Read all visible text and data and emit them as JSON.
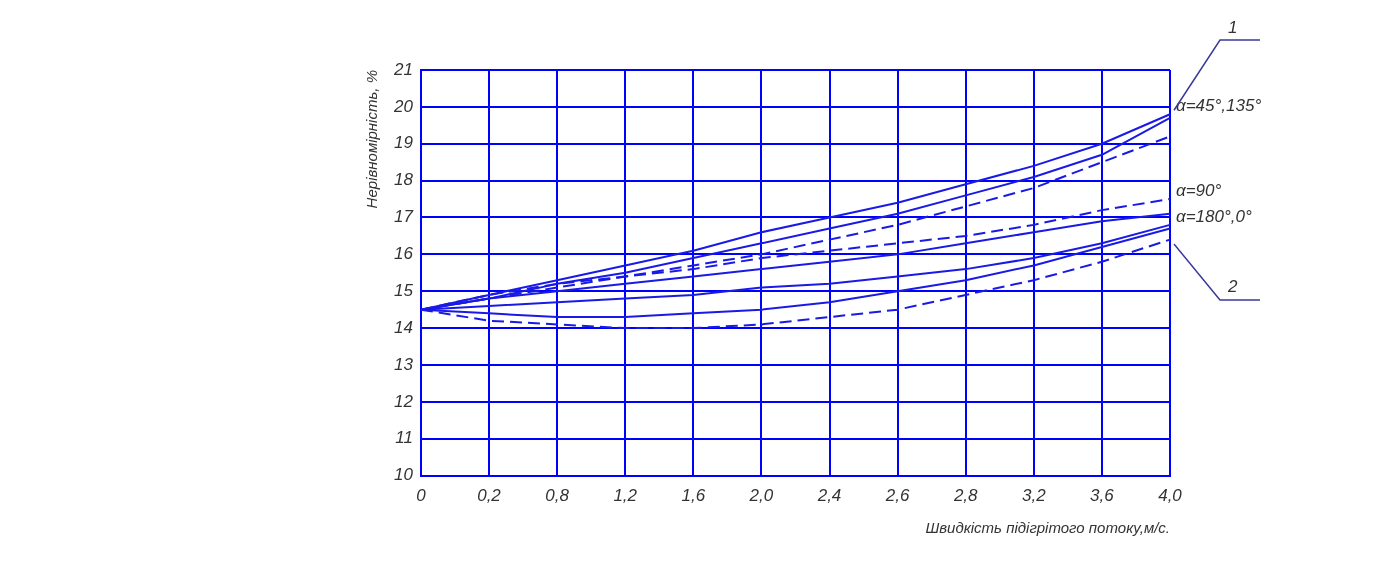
{
  "chart_data": {
    "type": "line",
    "xlabel": "Швидкість підігрітого потоку,м/с.",
    "ylabel": "Нерівномірність, %",
    "categories": [
      "0",
      "0,2",
      "0,8",
      "1,2",
      "1,6",
      "2,0",
      "2,4",
      "2,6",
      "2,8",
      "3,2",
      "3,6",
      "4,0"
    ],
    "ylim": [
      10,
      21
    ],
    "yticks": [
      10,
      11,
      12,
      13,
      14,
      15,
      16,
      17,
      18,
      19,
      20,
      21
    ],
    "grid": true,
    "legend": false,
    "marker": "none",
    "series": [
      {
        "color": "#1a1ae6",
        "line_style": "solid",
        "values": [
          14.5,
          14.9,
          15.3,
          15.7,
          16.1,
          16.6,
          17.0,
          17.4,
          17.9,
          18.4,
          19.0,
          19.8
        ]
      },
      {
        "color": "#1a1ae6",
        "line_style": "solid",
        "values": [
          14.5,
          14.8,
          15.2,
          15.5,
          15.9,
          16.3,
          16.7,
          17.1,
          17.6,
          18.1,
          18.7,
          19.7
        ]
      },
      {
        "color": "#1a1ae6",
        "line_style": "dashed",
        "values": [
          14.5,
          14.8,
          15.1,
          15.4,
          15.7,
          16.0,
          16.4,
          16.8,
          17.3,
          17.8,
          18.5,
          19.2
        ]
      },
      {
        "color": "#1a1ae6",
        "line_style": "dashed",
        "values": [
          14.5,
          14.9,
          15.2,
          15.4,
          15.6,
          15.9,
          16.1,
          16.3,
          16.5,
          16.8,
          17.2,
          17.5
        ]
      },
      {
        "color": "#1a1ae6",
        "line_style": "solid",
        "values": [
          14.5,
          14.8,
          15.0,
          15.2,
          15.4,
          15.6,
          15.8,
          16.0,
          16.3,
          16.6,
          16.9,
          17.1
        ]
      },
      {
        "color": "#1a1ae6",
        "line_style": "solid",
        "values": [
          14.5,
          14.6,
          14.7,
          14.8,
          14.9,
          15.1,
          15.2,
          15.4,
          15.6,
          15.9,
          16.3,
          16.8
        ]
      },
      {
        "color": "#1a1ae6",
        "line_style": "solid",
        "values": [
          14.5,
          14.4,
          14.3,
          14.3,
          14.4,
          14.5,
          14.7,
          15.0,
          15.3,
          15.7,
          16.2,
          16.7
        ]
      },
      {
        "color": "#1a1ae6",
        "line_style": "dashed",
        "values": [
          14.5,
          14.2,
          14.1,
          14.0,
          14.0,
          14.1,
          14.3,
          14.5,
          14.9,
          15.3,
          15.8,
          16.4
        ]
      }
    ],
    "annotations": [
      {
        "text": "α=45°,135°",
        "x": "4,0",
        "y": 19.8
      },
      {
        "text": "α=90°",
        "x": "4,0",
        "y": 17.5
      },
      {
        "text": "α=180°,0°",
        "x": "4,0",
        "y": 16.8
      },
      "1",
      "2"
    ]
  }
}
